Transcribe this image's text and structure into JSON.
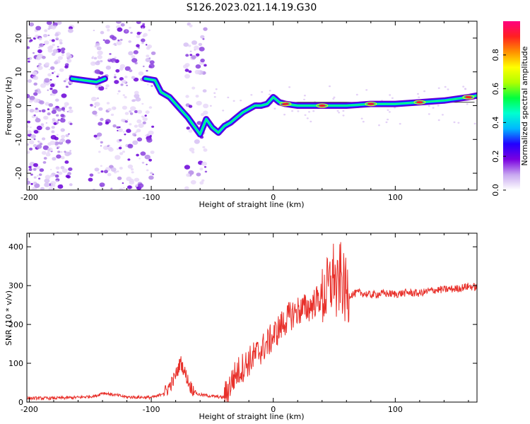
{
  "figure": {
    "title": "S126.2023.021.14.19.G30"
  },
  "chart_data": [
    {
      "type": "heatmap",
      "xlabel": "Height of straight line (km)",
      "ylabel": "Frequency (Hz)",
      "xlim": [
        -202,
        167
      ],
      "ylim": [
        -25,
        25
      ],
      "x_ticks": [
        -200,
        -100,
        0,
        100
      ],
      "y_ticks": [
        -20,
        -10,
        0,
        10,
        20
      ],
      "colorbar": {
        "label": "Normalized spectral amplitude",
        "range": [
          0,
          1
        ],
        "ticks": [
          0.0,
          0.2,
          0.4,
          0.6,
          0.8
        ],
        "tick_labels": [
          "0.0",
          "0.2",
          "0.4",
          "0.6",
          "0.8"
        ],
        "colors": [
          "#ffffff",
          "#c8a8f0",
          "#7a00e0",
          "#2200ff",
          "#00b8ff",
          "#00ffd0",
          "#00ff40",
          "#b0ff00",
          "#ffff00",
          "#ff9000",
          "#ff2020",
          "#ff0080"
        ]
      },
      "signal_track": [
        {
          "x": -165,
          "f": 8.0
        },
        {
          "x": -155,
          "f": 7.5
        },
        {
          "x": -145,
          "f": 7.0
        },
        {
          "x": -138,
          "f": 8.0
        },
        {
          "x": -105,
          "f": 8.0
        },
        {
          "x": -97,
          "f": 7.5
        },
        {
          "x": -92,
          "f": 4.0
        },
        {
          "x": -85,
          "f": 2.5
        },
        {
          "x": -80,
          "f": 0.5
        },
        {
          "x": -75,
          "f": -1.5
        },
        {
          "x": -70,
          "f": -3.5
        },
        {
          "x": -65,
          "f": -6.0
        },
        {
          "x": -60,
          "f": -8.5
        },
        {
          "x": -55,
          "f": -4.0
        },
        {
          "x": -50,
          "f": -6.5
        },
        {
          "x": -45,
          "f": -8.0
        },
        {
          "x": -40,
          "f": -6.0
        },
        {
          "x": -35,
          "f": -5.0
        },
        {
          "x": -30,
          "f": -3.5
        },
        {
          "x": -25,
          "f": -2.0
        },
        {
          "x": -20,
          "f": -1.0
        },
        {
          "x": -15,
          "f": 0.0
        },
        {
          "x": -10,
          "f": 0.0
        },
        {
          "x": -5,
          "f": 0.5
        },
        {
          "x": 0,
          "f": 2.5
        },
        {
          "x": 5,
          "f": 1.0
        },
        {
          "x": 10,
          "f": 0.5
        },
        {
          "x": 20,
          "f": 0.0
        },
        {
          "x": 40,
          "f": 0.0
        },
        {
          "x": 60,
          "f": 0.0
        },
        {
          "x": 80,
          "f": 0.5
        },
        {
          "x": 100,
          "f": 0.5
        },
        {
          "x": 120,
          "f": 1.0
        },
        {
          "x": 140,
          "f": 1.5
        },
        {
          "x": 160,
          "f": 2.5
        },
        {
          "x": 167,
          "f": 3.0
        }
      ],
      "line_segment": {
        "x": [
          5,
          165
        ],
        "f": 1.0
      }
    },
    {
      "type": "line",
      "xlabel": "Height of straight line (km)",
      "ylabel": "SNR (10 * v/v)",
      "xlim": [
        -202,
        167
      ],
      "ylim": [
        0,
        435
      ],
      "x_ticks": [
        -200,
        -100,
        0,
        100
      ],
      "y_ticks": [
        0,
        100,
        200,
        300,
        400
      ],
      "color": "#e8302a",
      "series": [
        {
          "x": [
            -202,
            -180,
            -160,
            -145,
            -140,
            -120,
            -100,
            -95,
            -88,
            -82,
            -78,
            -76,
            -72,
            -68,
            -62,
            -50,
            -40,
            -36,
            -33,
            -30,
            -25,
            -20,
            -15,
            -10,
            -5,
            0,
            5,
            10,
            15,
            20,
            25,
            30,
            35,
            40,
            45,
            48,
            50,
            52,
            55,
            58,
            60,
            62,
            70,
            80,
            90,
            100,
            110,
            120,
            130,
            140,
            150,
            160,
            167
          ],
          "y": [
            10,
            10,
            12,
            16,
            24,
            13,
            12,
            15,
            28,
            55,
            85,
            105,
            72,
            40,
            20,
            15,
            12,
            40,
            60,
            75,
            90,
            105,
            120,
            135,
            150,
            170,
            190,
            210,
            225,
            235,
            240,
            245,
            260,
            270,
            290,
            310,
            340,
            270,
            330,
            290,
            280,
            275,
            282,
            276,
            280,
            278,
            282,
            280,
            288,
            290,
            292,
            298,
            296
          ]
        }
      ]
    }
  ]
}
